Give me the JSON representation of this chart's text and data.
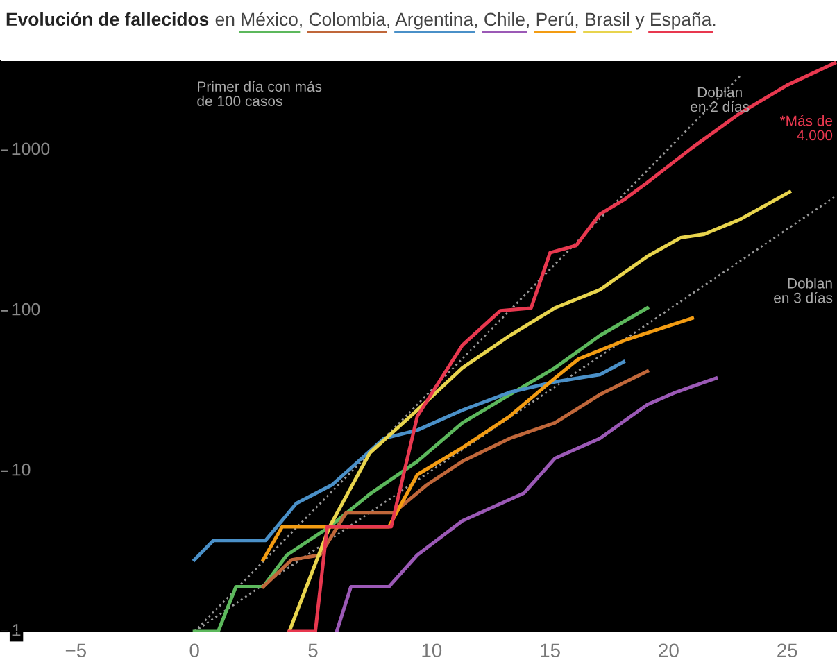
{
  "chart_data": {
    "type": "line",
    "title": "Evolución de fallecidos",
    "subtitle": "en México, Colombia, Argentina, Chile, Perú, Brasil y España.",
    "log": "y",
    "grid": false,
    "legend": false,
    "xlim": [
      -8.2,
      27.1
    ],
    "xticks": [
      {
        "value": -5,
        "label": "−5"
      },
      0,
      5,
      10,
      15,
      20,
      25
    ],
    "ylim": [
      1,
      3600
    ],
    "yticks": [
      1,
      10,
      100,
      1000
    ],
    "series": [
      {
        "color": "#5cb85c",
        "x": [
          0,
          1,
          1.75,
          2.9,
          3.9,
          5.7,
          7.4,
          9.4,
          11.3,
          13.3,
          15.2,
          17.1,
          19.1
        ],
        "values": [
          1,
          1,
          1.9,
          1.9,
          3,
          4.5,
          7.2,
          11.5,
          20,
          30,
          44,
          70,
          104
        ]
      },
      {
        "color": "#c0673a",
        "x": [
          2.9,
          4.1,
          5.3,
          6.4,
          8.4,
          9.8,
          11.3,
          13.3,
          15.2,
          17.1,
          19.1
        ],
        "values": [
          1.9,
          2.8,
          3,
          5.5,
          5.5,
          8.2,
          11.5,
          16,
          20,
          30,
          42
        ]
      },
      {
        "color": "#4a90c8",
        "x": [
          0,
          0.8,
          3,
          4.3,
          5.8,
          8,
          9.4,
          11.3,
          13.3,
          15.2,
          17.1,
          18.1
        ],
        "values": [
          2.8,
          3.7,
          3.7,
          6.3,
          8.2,
          16,
          18,
          24,
          31,
          36,
          40,
          48
        ]
      },
      {
        "color": "#9b59b6",
        "x": [
          6,
          6.6,
          8.2,
          9.4,
          11.3,
          13.9,
          15.2,
          17.1,
          19.1,
          20.3,
          22
        ],
        "values": [
          1,
          1.9,
          1.9,
          3,
          4.9,
          7.3,
          12,
          16,
          26,
          31,
          38
        ]
      },
      {
        "color": "#f39c12",
        "x": [
          2.9,
          3.7,
          8.2,
          9.4,
          11.3,
          13.3,
          15.2,
          16.2,
          18.1,
          21
        ],
        "values": [
          2.8,
          4.5,
          4.5,
          9.5,
          14,
          22,
          38,
          50,
          65,
          90
        ]
      },
      {
        "color": "#e8d44d",
        "x": [
          4,
          5.7,
          7.4,
          9.4,
          11.3,
          13.3,
          15.2,
          17.1,
          19.1,
          20.5,
          21.5,
          23,
          25.1
        ],
        "values": [
          1,
          4.5,
          13,
          24,
          44,
          70,
          104,
          135,
          218,
          285,
          300,
          370,
          550
        ]
      },
      {
        "color": "#e8384f",
        "x": [
          4,
          5.1,
          5.6,
          8.3,
          9.4,
          11.3,
          12.9,
          14.2,
          15,
          16.1,
          17.1,
          18.1,
          19.1,
          21,
          23,
          25,
          27
        ],
        "values": [
          1,
          1,
          4.5,
          4.5,
          22,
          61,
          100,
          104,
          230,
          255,
          400,
          490,
          630,
          1040,
          1700,
          2550,
          3500
        ]
      },
      {
        "type": "line",
        "color": "#9a9a9a",
        "line_style": "dotted",
        "x": [
          0,
          23
        ],
        "values": [
          1,
          2896
        ]
      },
      {
        "type": "line",
        "color": "#9a9a9a",
        "line_style": "dotted",
        "x": [
          0,
          27
        ],
        "values": [
          1,
          512
        ]
      }
    ],
    "annotations": [
      "Primer día con más\nde 100 casos",
      "Doblan\nen 2 días",
      "Doblan\nen 3 días",
      "*Más de\n4.000"
    ]
  }
}
